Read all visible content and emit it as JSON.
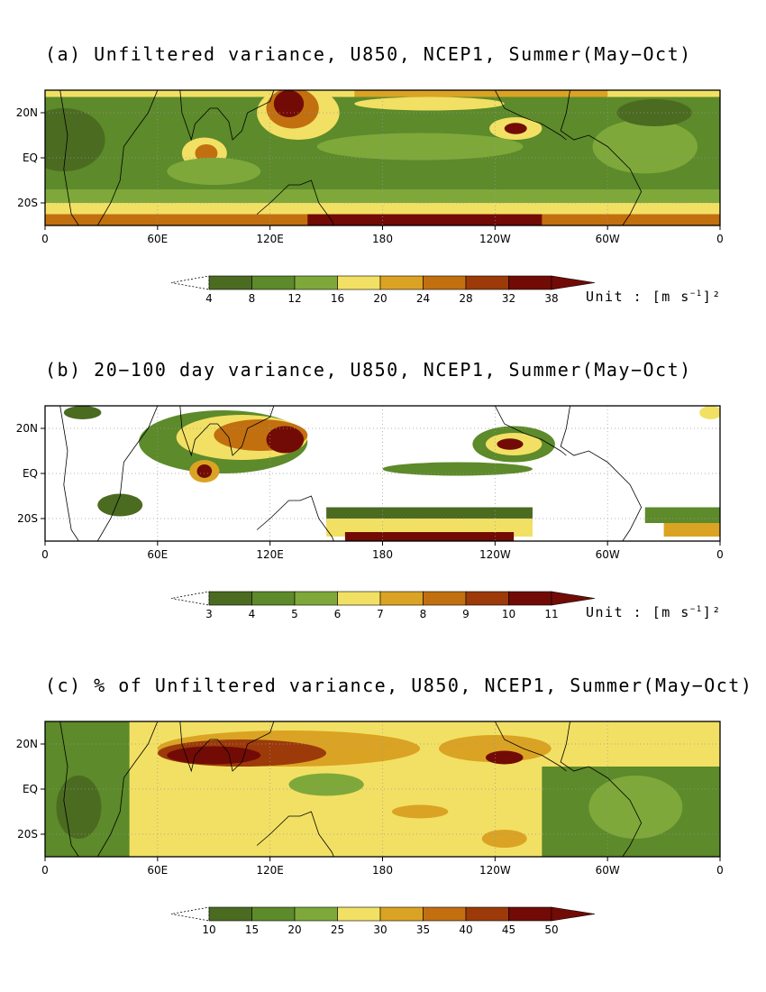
{
  "colors": {
    "palette": [
      "#4b6b21",
      "#5d8a2a",
      "#7ea83a",
      "#f2e064",
      "#dba323",
      "#c26f10",
      "#9c3a09",
      "#720b06"
    ],
    "extend_low": "#ffffff",
    "land_line": "#000000",
    "grid": "#999999"
  },
  "chart_data": [
    {
      "type": "heatmap",
      "panel": "a",
      "title": "(a) Unfiltered variance, U850, NCEP1, Summer(May−Oct)",
      "x_tick_labels": [
        "0",
        "60E",
        "120E",
        "180",
        "120W",
        "60W",
        "0"
      ],
      "x_ticks_deg_east": [
        0,
        60,
        120,
        180,
        240,
        300,
        360
      ],
      "y_tick_labels": [
        "20N",
        "EQ",
        "20S"
      ],
      "y_ticks_deg": [
        20,
        0,
        -20
      ],
      "lon_range": [
        0,
        360
      ],
      "lat_range": [
        -30,
        30
      ],
      "colorbar_levels": [
        "4",
        "8",
        "12",
        "16",
        "20",
        "24",
        "28",
        "32",
        "38"
      ],
      "unit_text": "Unit : [m s",
      "unit_exp": "−1",
      "unit_tail": "]²"
    },
    {
      "type": "heatmap",
      "panel": "b",
      "title": "(b) 20−100 day variance, U850, NCEP1, Summer(May−Oct)",
      "x_tick_labels": [
        "0",
        "60E",
        "120E",
        "180",
        "120W",
        "60W",
        "0"
      ],
      "x_ticks_deg_east": [
        0,
        60,
        120,
        180,
        240,
        300,
        360
      ],
      "y_tick_labels": [
        "20N",
        "EQ",
        "20S"
      ],
      "y_ticks_deg": [
        20,
        0,
        -20
      ],
      "lon_range": [
        0,
        360
      ],
      "lat_range": [
        -30,
        30
      ],
      "colorbar_levels": [
        "3",
        "4",
        "5",
        "6",
        "7",
        "8",
        "9",
        "10",
        "11"
      ],
      "unit_text": "Unit : [m s",
      "unit_exp": "−1",
      "unit_tail": "]²"
    },
    {
      "type": "heatmap",
      "panel": "c",
      "title": "(c) % of Unfiltered variance, U850, NCEP1, Summer(May−Oct)",
      "x_tick_labels": [
        "0",
        "60E",
        "120E",
        "180",
        "120W",
        "60W",
        "0"
      ],
      "x_ticks_deg_east": [
        0,
        60,
        120,
        180,
        240,
        300,
        360
      ],
      "y_tick_labels": [
        "20N",
        "EQ",
        "20S"
      ],
      "y_ticks_deg": [
        20,
        0,
        -20
      ],
      "lon_range": [
        0,
        360
      ],
      "lat_range": [
        -30,
        30
      ],
      "colorbar_levels": [
        "10",
        "15",
        "20",
        "25",
        "30",
        "35",
        "40",
        "45",
        "50"
      ]
    }
  ]
}
